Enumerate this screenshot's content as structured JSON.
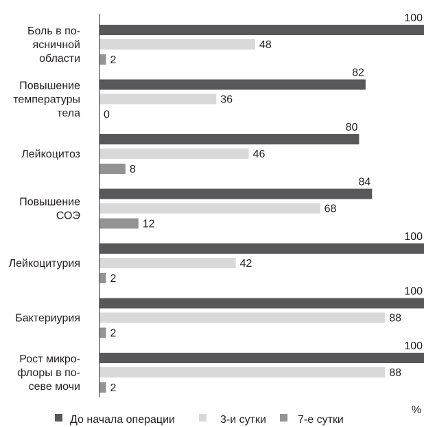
{
  "chart_data": {
    "type": "bar",
    "orientation": "horizontal",
    "categories": [
      [
        "Боль в по-",
        "ясничной",
        "области"
      ],
      [
        "Повышение",
        "температуры",
        "тела"
      ],
      [
        "Лейкоцитоз"
      ],
      [
        "Повышение",
        "СОЭ"
      ],
      [
        "Лейкоцитурия"
      ],
      [
        "Бактериурия"
      ],
      [
        "Рост микро-",
        "флоры в по-",
        "севе мочи"
      ]
    ],
    "series": [
      {
        "name": "До начала операции",
        "color": "#58585a",
        "values": [
          100,
          82,
          80,
          84,
          100,
          100,
          100
        ]
      },
      {
        "name": "3-и сутки",
        "color": "#d9d9d9",
        "values": [
          48,
          36,
          46,
          68,
          42,
          88,
          88
        ]
      },
      {
        "name": "7-е сутки",
        "color": "#939393",
        "values": [
          2,
          0,
          8,
          12,
          2,
          2,
          2
        ]
      }
    ],
    "xlabel": "%",
    "xlim": [
      0,
      100
    ],
    "grid": false,
    "legend_position": "bottom",
    "data_labels": true
  }
}
